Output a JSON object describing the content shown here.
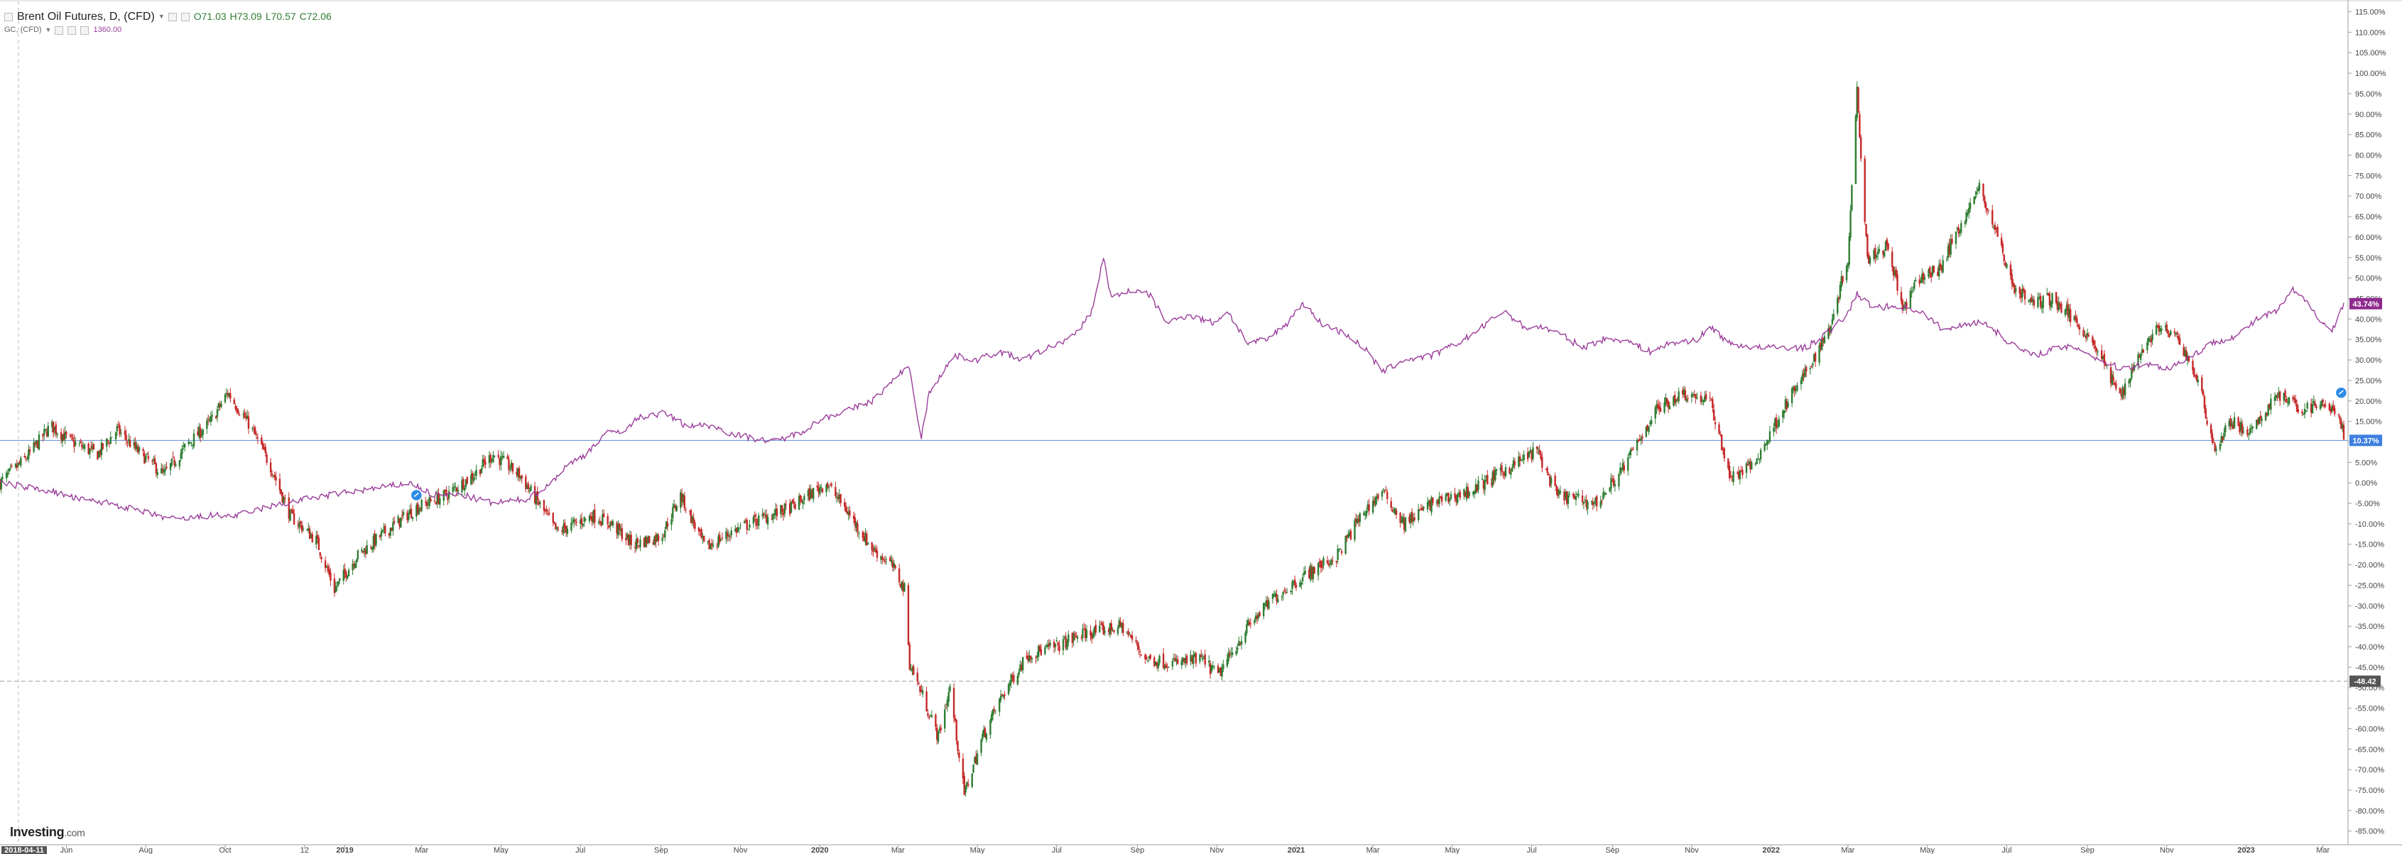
{
  "legend": {
    "main_symbol": "Brent Oil Futures, D, (CFD)",
    "open_label": "O71.03",
    "high_label": "H73.09",
    "low_label": "L70.57",
    "close_label": "C72.06",
    "compare_symbol": "GC, (CFD)",
    "compare_value": "1360.00"
  },
  "logo": {
    "brand": "Investing",
    "suffix": ".com"
  },
  "colors": {
    "up_candle": "#2e7d32",
    "down_candle": "#c62828",
    "compare_line": "#9b3d9b",
    "price_line": "#5b8bd6",
    "crosshair_tag": "#555555",
    "gold_tag": "#8e2a8e",
    "price_tag": "#3d7ee0"
  },
  "chart_data": {
    "type": "line",
    "title": "",
    "xlabel": "",
    "ylabel": "",
    "y_unit": "%",
    "ylim": [
      -88,
      117
    ],
    "x_range": [
      "2018-04-11",
      "2023-03-17"
    ],
    "y_ticks": [
      "115.00%",
      "110.00%",
      "105.00%",
      "100.00%",
      "95.00%",
      "90.00%",
      "85.00%",
      "80.00%",
      "75.00%",
      "70.00%",
      "65.00%",
      "60.00%",
      "55.00%",
      "50.00%",
      "45.00%",
      "40.00%",
      "35.00%",
      "30.00%",
      "25.00%",
      "20.00%",
      "15.00%",
      "10.00%",
      "5.00%",
      "0.00%",
      "-5.00%",
      "-10.00%",
      "-15.00%",
      "-20.00%",
      "-25.00%",
      "-30.00%",
      "-35.00%",
      "-40.00%",
      "-45.00%",
      "-50.00%",
      "-55.00%",
      "-60.00%",
      "-65.00%",
      "-70.00%",
      "-75.00%",
      "-80.00%",
      "-85.00%"
    ],
    "x_ticks": [
      {
        "date": "2018-06-01",
        "label": "Jun"
      },
      {
        "date": "2018-08-01",
        "label": "Aug"
      },
      {
        "date": "2018-10-01",
        "label": "Oct"
      },
      {
        "date": "2018-12-01",
        "label": "12"
      },
      {
        "date": "2019-01-01",
        "label": "2019"
      },
      {
        "date": "2019-03-01",
        "label": "Mar"
      },
      {
        "date": "2019-05-01",
        "label": "May"
      },
      {
        "date": "2019-07-01",
        "label": "Jul"
      },
      {
        "date": "2019-09-01",
        "label": "Sep"
      },
      {
        "date": "2019-11-01",
        "label": "Nov"
      },
      {
        "date": "2020-01-01",
        "label": "2020"
      },
      {
        "date": "2020-03-01",
        "label": "Mar"
      },
      {
        "date": "2020-05-01",
        "label": "May"
      },
      {
        "date": "2020-07-01",
        "label": "Jul"
      },
      {
        "date": "2020-09-01",
        "label": "Sep"
      },
      {
        "date": "2020-11-01",
        "label": "Nov"
      },
      {
        "date": "2021-01-01",
        "label": "2021"
      },
      {
        "date": "2021-03-01",
        "label": "Mar"
      },
      {
        "date": "2021-05-01",
        "label": "May"
      },
      {
        "date": "2021-07-01",
        "label": "Jul"
      },
      {
        "date": "2021-09-01",
        "label": "Sep"
      },
      {
        "date": "2021-11-01",
        "label": "Nov"
      },
      {
        "date": "2022-01-01",
        "label": "2022"
      },
      {
        "date": "2022-03-01",
        "label": "Mar"
      },
      {
        "date": "2022-05-01",
        "label": "May"
      },
      {
        "date": "2022-07-01",
        "label": "Jul"
      },
      {
        "date": "2022-09-01",
        "label": "Sep"
      },
      {
        "date": "2022-11-01",
        "label": "Nov"
      },
      {
        "date": "2023-01-01",
        "label": "2023"
      },
      {
        "date": "2023-03-01",
        "label": "Mar"
      }
    ],
    "x_cursor_label": "2018-04-11",
    "horizontal_line": {
      "value": 10.37,
      "label": "10.37%"
    },
    "crosshair": {
      "value": -48.42,
      "label": "-48.42"
    },
    "gold_last": {
      "value": 43.74,
      "label": "43.74%"
    },
    "series": [
      {
        "kind": "candlestick",
        "points": [
          [
            "2018-04-11",
            0
          ],
          [
            "2018-05-01",
            6
          ],
          [
            "2018-05-20",
            14
          ],
          [
            "2018-06-05",
            10
          ],
          [
            "2018-06-25",
            7
          ],
          [
            "2018-07-10",
            13
          ],
          [
            "2018-07-25",
            8
          ],
          [
            "2018-08-15",
            2
          ],
          [
            "2018-09-01",
            9
          ],
          [
            "2018-09-20",
            15
          ],
          [
            "2018-10-03",
            22
          ],
          [
            "2018-10-20",
            14
          ],
          [
            "2018-11-05",
            4
          ],
          [
            "2018-11-20",
            -8
          ],
          [
            "2018-12-10",
            -14
          ],
          [
            "2018-12-24",
            -26
          ],
          [
            "2019-01-10",
            -18
          ],
          [
            "2019-02-01",
            -12
          ],
          [
            "2019-02-25",
            -6
          ],
          [
            "2019-03-20",
            -3
          ],
          [
            "2019-04-10",
            2
          ],
          [
            "2019-04-25",
            7
          ],
          [
            "2019-05-15",
            2
          ],
          [
            "2019-06-01",
            -6
          ],
          [
            "2019-06-13",
            -12
          ],
          [
            "2019-07-10",
            -8
          ],
          [
            "2019-07-25",
            -10
          ],
          [
            "2019-08-10",
            -15
          ],
          [
            "2019-09-01",
            -13
          ],
          [
            "2019-09-16",
            -3
          ],
          [
            "2019-10-05",
            -16
          ],
          [
            "2019-10-25",
            -12
          ],
          [
            "2019-11-15",
            -9
          ],
          [
            "2019-12-10",
            -6
          ],
          [
            "2020-01-06",
            0
          ],
          [
            "2020-01-20",
            -6
          ],
          [
            "2020-02-10",
            -16
          ],
          [
            "2020-02-25",
            -20
          ],
          [
            "2020-03-06",
            -26
          ],
          [
            "2020-03-10",
            -44
          ],
          [
            "2020-03-20",
            -52
          ],
          [
            "2020-04-01",
            -62
          ],
          [
            "2020-04-10",
            -50
          ],
          [
            "2020-04-21",
            -76
          ],
          [
            "2020-05-05",
            -62
          ],
          [
            "2020-05-20",
            -52
          ],
          [
            "2020-06-08",
            -42
          ],
          [
            "2020-06-30",
            -40
          ],
          [
            "2020-07-20",
            -37
          ],
          [
            "2020-08-20",
            -35
          ],
          [
            "2020-09-08",
            -43
          ],
          [
            "2020-09-30",
            -44
          ],
          [
            "2020-10-20",
            -43
          ],
          [
            "2020-11-02",
            -47
          ],
          [
            "2020-11-25",
            -35
          ],
          [
            "2020-12-15",
            -28
          ],
          [
            "2021-01-10",
            -22
          ],
          [
            "2021-02-01",
            -18
          ],
          [
            "2021-02-20",
            -8
          ],
          [
            "2021-03-08",
            -2
          ],
          [
            "2021-03-25",
            -10
          ],
          [
            "2021-04-15",
            -5
          ],
          [
            "2021-05-15",
            -2
          ],
          [
            "2021-06-10",
            3
          ],
          [
            "2021-07-05",
            8
          ],
          [
            "2021-07-20",
            -3
          ],
          [
            "2021-08-20",
            -5
          ],
          [
            "2021-09-10",
            4
          ],
          [
            "2021-10-05",
            18
          ],
          [
            "2021-10-25",
            22
          ],
          [
            "2021-11-15",
            20
          ],
          [
            "2021-12-01",
            1
          ],
          [
            "2021-12-20",
            5
          ],
          [
            "2022-01-10",
            18
          ],
          [
            "2022-01-30",
            28
          ],
          [
            "2022-02-15",
            38
          ],
          [
            "2022-03-01",
            55
          ],
          [
            "2022-03-08",
            96
          ],
          [
            "2022-03-16",
            55
          ],
          [
            "2022-04-01",
            58
          ],
          [
            "2022-04-12",
            42
          ],
          [
            "2022-04-25",
            50
          ],
          [
            "2022-05-10",
            52
          ],
          [
            "2022-05-25",
            62
          ],
          [
            "2022-06-10",
            72
          ],
          [
            "2022-06-22",
            62
          ],
          [
            "2022-07-06",
            48
          ],
          [
            "2022-07-20",
            44
          ],
          [
            "2022-08-05",
            45
          ],
          [
            "2022-08-25",
            39
          ],
          [
            "2022-09-08",
            33
          ],
          [
            "2022-09-26",
            21
          ],
          [
            "2022-10-10",
            31
          ],
          [
            "2022-10-25",
            38
          ],
          [
            "2022-11-10",
            35
          ],
          [
            "2022-11-25",
            25
          ],
          [
            "2022-12-08",
            8
          ],
          [
            "2022-12-20",
            15
          ],
          [
            "2023-01-05",
            12
          ],
          [
            "2023-01-25",
            22
          ],
          [
            "2023-02-10",
            18
          ],
          [
            "2023-02-28",
            19
          ],
          [
            "2023-03-10",
            18
          ],
          [
            "2023-03-17",
            12
          ]
        ]
      },
      {
        "kind": "line",
        "points": [
          [
            "2018-04-11",
            0
          ],
          [
            "2018-05-01",
            -1
          ],
          [
            "2018-05-20",
            -2
          ],
          [
            "2018-06-10",
            -4
          ],
          [
            "2018-07-05",
            -5
          ],
          [
            "2018-08-10",
            -8
          ],
          [
            "2018-08-25",
            -9
          ],
          [
            "2018-09-20",
            -8
          ],
          [
            "2018-10-10",
            -8
          ],
          [
            "2018-11-01",
            -6
          ],
          [
            "2018-12-01",
            -4
          ],
          [
            "2018-12-20",
            -3
          ],
          [
            "2019-01-10",
            -2
          ],
          [
            "2019-02-01",
            -1
          ],
          [
            "2019-02-20",
            0
          ],
          [
            "2019-03-10",
            -3
          ],
          [
            "2019-04-01",
            -3
          ],
          [
            "2019-04-25",
            -5
          ],
          [
            "2019-05-20",
            -4
          ],
          [
            "2019-06-05",
            -1
          ],
          [
            "2019-06-20",
            4
          ],
          [
            "2019-07-05",
            7
          ],
          [
            "2019-07-20",
            12
          ],
          [
            "2019-08-05",
            13
          ],
          [
            "2019-08-15",
            16
          ],
          [
            "2019-09-04",
            17
          ],
          [
            "2019-09-20",
            14
          ],
          [
            "2019-10-10",
            14
          ],
          [
            "2019-10-25",
            12
          ],
          [
            "2019-11-10",
            11
          ],
          [
            "2019-11-25",
            10
          ],
          [
            "2019-12-15",
            12
          ],
          [
            "2020-01-05",
            16
          ],
          [
            "2020-01-25",
            18
          ],
          [
            "2020-02-10",
            20
          ],
          [
            "2020-02-20",
            23
          ],
          [
            "2020-03-01",
            26
          ],
          [
            "2020-03-09",
            29
          ],
          [
            "2020-03-19",
            11
          ],
          [
            "2020-03-25",
            22
          ],
          [
            "2020-04-06",
            28
          ],
          [
            "2020-04-14",
            31
          ],
          [
            "2020-04-30",
            30
          ],
          [
            "2020-05-18",
            32
          ],
          [
            "2020-06-05",
            30
          ],
          [
            "2020-06-25",
            33
          ],
          [
            "2020-07-15",
            36
          ],
          [
            "2020-07-28",
            42
          ],
          [
            "2020-08-06",
            55
          ],
          [
            "2020-08-12",
            45
          ],
          [
            "2020-08-25",
            47
          ],
          [
            "2020-09-10",
            46
          ],
          [
            "2020-09-24",
            39
          ],
          [
            "2020-10-10",
            41
          ],
          [
            "2020-10-30",
            39
          ],
          [
            "2020-11-09",
            42
          ],
          [
            "2020-11-25",
            34
          ],
          [
            "2020-12-10",
            35
          ],
          [
            "2020-12-25",
            39
          ],
          [
            "2021-01-06",
            44
          ],
          [
            "2021-01-20",
            39
          ],
          [
            "2021-02-10",
            36
          ],
          [
            "2021-02-25",
            32
          ],
          [
            "2021-03-08",
            27
          ],
          [
            "2021-03-25",
            30
          ],
          [
            "2021-04-15",
            31
          ],
          [
            "2021-05-05",
            34
          ],
          [
            "2021-05-20",
            37
          ],
          [
            "2021-06-01",
            40
          ],
          [
            "2021-06-10",
            42
          ],
          [
            "2021-06-25",
            38
          ],
          [
            "2021-07-10",
            38
          ],
          [
            "2021-07-25",
            36
          ],
          [
            "2021-08-09",
            33
          ],
          [
            "2021-08-25",
            35
          ],
          [
            "2021-09-10",
            35
          ],
          [
            "2021-09-30",
            32
          ],
          [
            "2021-10-15",
            34
          ],
          [
            "2021-11-05",
            35
          ],
          [
            "2021-11-16",
            38
          ],
          [
            "2021-11-30",
            34
          ],
          [
            "2021-12-20",
            33
          ],
          [
            "2022-01-10",
            33
          ],
          [
            "2022-01-28",
            33
          ],
          [
            "2022-02-15",
            37
          ],
          [
            "2022-02-28",
            41
          ],
          [
            "2022-03-08",
            46
          ],
          [
            "2022-03-20",
            43
          ],
          [
            "2022-04-10",
            43
          ],
          [
            "2022-04-25",
            42
          ],
          [
            "2022-05-15",
            37
          ],
          [
            "2022-05-30",
            39
          ],
          [
            "2022-06-15",
            39
          ],
          [
            "2022-06-30",
            35
          ],
          [
            "2022-07-20",
            31
          ],
          [
            "2022-08-10",
            33
          ],
          [
            "2022-08-25",
            33
          ],
          [
            "2022-09-10",
            30
          ],
          [
            "2022-09-26",
            28
          ],
          [
            "2022-10-15",
            29
          ],
          [
            "2022-11-03",
            28
          ],
          [
            "2022-11-20",
            31
          ],
          [
            "2022-12-05",
            34
          ],
          [
            "2022-12-25",
            36
          ],
          [
            "2023-01-10",
            40
          ],
          [
            "2023-01-25",
            42
          ],
          [
            "2023-02-06",
            47
          ],
          [
            "2023-02-20",
            43
          ],
          [
            "2023-03-01",
            39
          ],
          [
            "2023-03-08",
            37
          ],
          [
            "2023-03-17",
            44
          ]
        ]
      }
    ]
  }
}
